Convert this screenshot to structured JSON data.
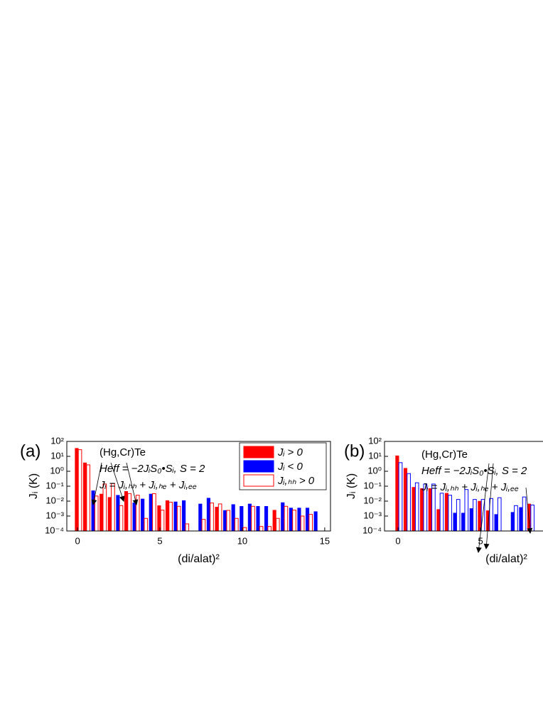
{
  "chart_data": [
    {
      "type": "bar",
      "panel_label": "(a)",
      "log_y": true,
      "legend": "upper right",
      "annotations": [
        "(Hg,Cr)Te",
        "Heff = −2JᵢS₀•Sᵢ, S = 2",
        "Jᵢ = Jᵢ,ₕₕ + Jᵢ,ₕₑ + Jᵢ,ₑₑ"
      ],
      "xlabel": "(di/alat)²",
      "ylabel": "Jᵢ (K)",
      "xlim": [
        -0.65,
        15.35
      ],
      "ylim": [
        0.0001,
        100
      ],
      "xticks": [
        0,
        5,
        10,
        15
      ],
      "yticks": [
        {
          "value": 0.0001,
          "label": "10⁻⁴"
        },
        {
          "value": 0.001,
          "label": "10⁻³"
        },
        {
          "value": 0.01,
          "label": "10⁻²"
        },
        {
          "value": 0.1,
          "label": "10⁻¹"
        },
        {
          "value": 1,
          "label": "10⁰"
        },
        {
          "value": 10,
          "label": "10¹"
        },
        {
          "value": 100,
          "label": "10²"
        }
      ],
      "x": [
        0,
        0.5,
        1,
        1.5,
        2,
        2.5,
        3,
        3.5,
        4,
        4.5,
        5,
        5.5,
        6,
        6.5,
        7.5,
        8,
        8.5,
        9,
        9.5,
        10,
        10.5,
        11,
        11.5,
        12,
        12.5,
        13,
        13.5,
        14,
        14.5
      ],
      "series": [
        {
          "name": "Jᵢ > 0",
          "color": "#ff0000",
          "style": "filled",
          "values": [
            35,
            3.7,
            null,
            0.03,
            0.018,
            null,
            0.045,
            null,
            null,
            null,
            0.005,
            0.011,
            null,
            null,
            null,
            null,
            0.004,
            null,
            null,
            null,
            null,
            null,
            null,
            0.0025,
            null,
            null,
            null,
            null,
            null
          ]
        },
        {
          "name": "Jᵢ < 0",
          "color": "#0000ff",
          "style": "filled",
          "values": [
            null,
            null,
            0.05,
            null,
            null,
            0.025,
            null,
            0.0078,
            0.014,
            0.03,
            null,
            null,
            0.009,
            0.011,
            0.0065,
            0.016,
            null,
            0.0024,
            0.006,
            0.0045,
            0.0065,
            0.0045,
            0.0045,
            null,
            0.008,
            0.0035,
            0.0035,
            0.0035,
            0.002
          ]
        },
        {
          "name": "Jᵢ,ₕₕ > 0",
          "color": "#ff0000",
          "style": "open",
          "values": [
            28,
            2.7,
            0.022,
            0.14,
            0.15,
            0.005,
            0.032,
            0.025,
            0.0007,
            0.032,
            0.0025,
            0.0085,
            0.0045,
            0.0003,
            0.0006,
            0.0075,
            0.0065,
            0.0024,
            0.0007,
            0.00017,
            0.0045,
            0.0002,
            0.0002,
            0.0007,
            0.0045,
            0.0025,
            0.001,
            0.0013,
            null
          ]
        }
      ]
    },
    {
      "type": "bar",
      "panel_label": "(b)",
      "log_y": true,
      "annotations": [
        "(Hg,Cr)Te",
        "Heff = −2JᵢS₀•Sᵢ, S = 2",
        "Jᵢ = Jᵢ,ₕₕ + Jᵢ,ₕₑ + Jᵢ,ₑₑ"
      ],
      "xlabel": "(di/alat)²",
      "ylabel": "Jᵢ (K)",
      "xlim": [
        -0.82,
        9.91
      ],
      "ylim": [
        0.0001,
        100
      ],
      "xticks": [
        0,
        5
      ],
      "yticks": [
        {
          "value": 0.0001,
          "label": "10⁻⁴"
        },
        {
          "value": 0.001,
          "label": "10⁻³"
        },
        {
          "value": 0.01,
          "label": "10⁻²"
        },
        {
          "value": 0.1,
          "label": "10⁻¹"
        },
        {
          "value": 1,
          "label": "10⁰"
        },
        {
          "value": 10,
          "label": "10¹"
        },
        {
          "value": 100,
          "label": "10²"
        }
      ],
      "x": [
        0,
        0.5,
        1,
        1.5,
        2,
        2.5,
        3,
        3.5,
        4,
        4.5,
        5,
        5.5,
        6,
        7,
        7.5,
        8
      ],
      "series": [
        {
          "color": "#ff0000",
          "style": "filled",
          "values": [
            11,
            1.6,
            0.085,
            0.07,
            0.07,
            0.0028,
            0.034,
            null,
            null,
            null,
            0.01,
            0.0023,
            null,
            null,
            null,
            0.0065
          ]
        },
        {
          "color": "#0000ff",
          "style": "filled",
          "values": [
            null,
            null,
            null,
            null,
            null,
            null,
            null,
            0.0016,
            0.0016,
            0.0032,
            null,
            null,
            0.0013,
            0.0018,
            0.0038,
            null
          ]
        },
        {
          "color": "#0000ff",
          "style": "open",
          "values": [
            3.8,
            0.7,
            0.17,
            0.14,
            0.14,
            0.034,
            0.025,
            0.013,
            0.06,
            0.013,
            0.013,
            0.015,
            0.017,
            0.005,
            0.019,
            0.0055
          ]
        }
      ]
    }
  ]
}
